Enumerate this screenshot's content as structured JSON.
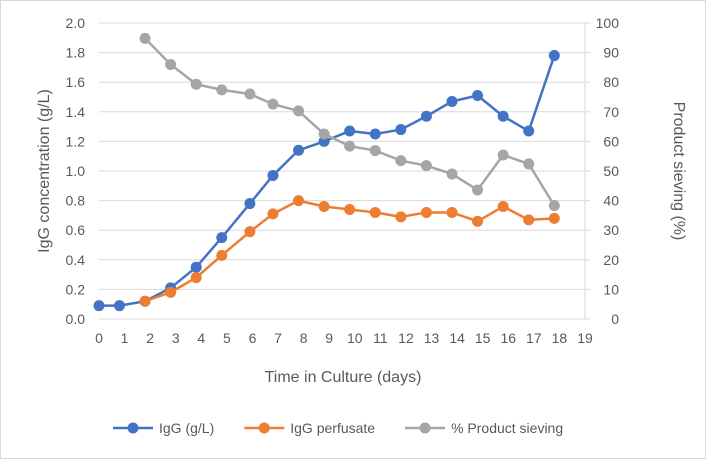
{
  "chart_data": {
    "type": "line",
    "title": "",
    "xlabel": "Time in Culture (days)",
    "ylabel": "IgG concentration (g/L)",
    "y2label": "Product sieving (%)",
    "xlim": [
      0,
      19
    ],
    "ylim": [
      0,
      2.0
    ],
    "y2lim": [
      0,
      100
    ],
    "xticks": [
      "0",
      "1",
      "2",
      "3",
      "4",
      "5",
      "6",
      "7",
      "8",
      "9",
      "10",
      "11",
      "12",
      "13",
      "14",
      "15",
      "16",
      "17",
      "18",
      "19"
    ],
    "yticks": [
      "0.0",
      "0.2",
      "0.4",
      "0.6",
      "0.8",
      "1.0",
      "1.2",
      "1.4",
      "1.6",
      "1.8",
      "2.0"
    ],
    "y2ticks": [
      "0",
      "10",
      "20",
      "30",
      "40",
      "50",
      "60",
      "70",
      "80",
      "90",
      "100"
    ],
    "grid": true,
    "legend_position": "bottom",
    "series": [
      {
        "name": "IgG (g/L)",
        "axis": "left",
        "color": "#4472C4",
        "x": [
          0,
          0.8,
          1.8,
          2.8,
          3.8,
          4.8,
          5.9,
          6.8,
          7.8,
          8.8,
          9.8,
          10.8,
          11.8,
          12.8,
          13.8,
          14.8,
          15.8,
          16.8,
          17.8
        ],
        "y": [
          0.09,
          0.09,
          0.12,
          0.21,
          0.35,
          0.55,
          0.78,
          0.97,
          1.14,
          1.2,
          1.27,
          1.25,
          1.28,
          1.37,
          1.47,
          1.51,
          1.37,
          1.27,
          1.78
        ]
      },
      {
        "name": "IgG perfusate",
        "axis": "left",
        "color": "#ED7D31",
        "x": [
          1.8,
          2.8,
          3.8,
          4.8,
          5.9,
          6.8,
          7.8,
          8.8,
          9.8,
          10.8,
          11.8,
          12.8,
          13.8,
          14.8,
          15.8,
          16.8,
          17.8
        ],
        "y": [
          0.12,
          0.18,
          0.28,
          0.43,
          0.59,
          0.71,
          0.8,
          0.76,
          0.74,
          0.72,
          0.69,
          0.72,
          0.72,
          0.66,
          0.76,
          0.67,
          0.68
        ]
      },
      {
        "name": "% Product sieving",
        "axis": "right",
        "color": "#A5A5A5",
        "x": [
          1.8,
          2.8,
          3.8,
          4.8,
          5.9,
          6.8,
          7.8,
          8.8,
          9.8,
          10.8,
          11.8,
          12.8,
          13.8,
          14.8,
          15.8,
          16.8,
          17.8
        ],
        "y": [
          94.8,
          86,
          79.3,
          77.4,
          76,
          72.6,
          70.3,
          62.5,
          58.4,
          56.9,
          53.5,
          51.8,
          49,
          43.6,
          55.4,
          52.4,
          38.3
        ]
      }
    ]
  }
}
